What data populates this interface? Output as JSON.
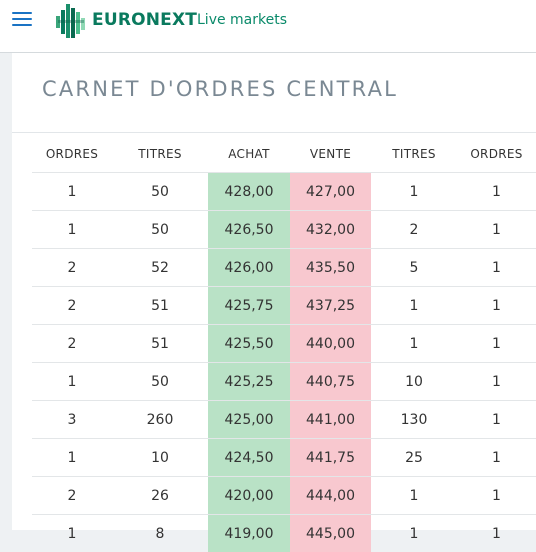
{
  "header": {
    "brand": "EURONEXT",
    "live_label": "Live markets"
  },
  "colors": {
    "brand_green": "#0a7a5e",
    "achat_bg": "#b9e2c6",
    "vente_bg": "#f8c8cf",
    "menu_blue": "#1a73c4"
  },
  "page": {
    "title": "CARNET D'ORDRES CENTRAL"
  },
  "orderbook": {
    "headers": [
      "ORDRES",
      "TITRES",
      "ACHAT",
      "VENTE",
      "TITRES",
      "ORDRES"
    ],
    "rows": [
      [
        "1",
        "50",
        "428,00",
        "427,00",
        "1",
        "1"
      ],
      [
        "1",
        "50",
        "426,50",
        "432,00",
        "2",
        "1"
      ],
      [
        "2",
        "52",
        "426,00",
        "435,50",
        "5",
        "1"
      ],
      [
        "2",
        "51",
        "425,75",
        "437,25",
        "1",
        "1"
      ],
      [
        "2",
        "51",
        "425,50",
        "440,00",
        "1",
        "1"
      ],
      [
        "1",
        "50",
        "425,25",
        "440,75",
        "10",
        "1"
      ],
      [
        "3",
        "260",
        "425,00",
        "441,00",
        "130",
        "1"
      ],
      [
        "1",
        "10",
        "424,50",
        "441,75",
        "25",
        "1"
      ],
      [
        "2",
        "26",
        "420,00",
        "444,00",
        "1",
        "1"
      ],
      [
        "1",
        "8",
        "419,00",
        "445,00",
        "1",
        "1"
      ]
    ]
  }
}
